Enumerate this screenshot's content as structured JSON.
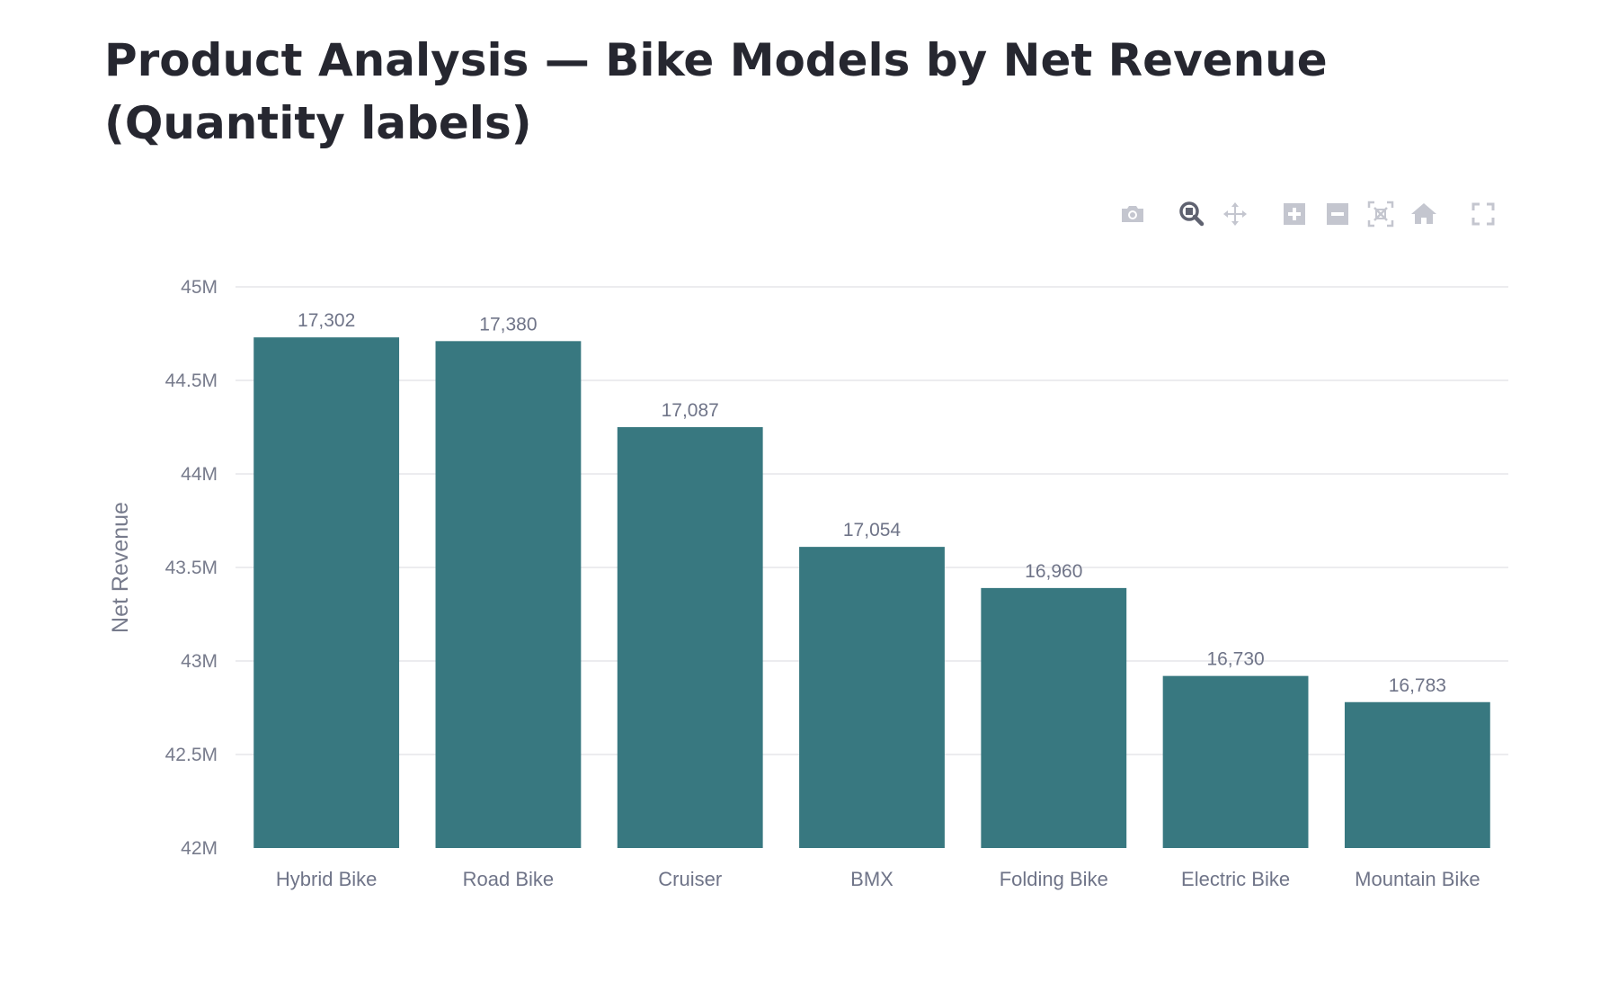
{
  "page": {
    "title": "Product Analysis — Bike Models by Net Revenue (Quantity labels)"
  },
  "toolbar": {
    "buttons": [
      {
        "name": "camera-icon",
        "label": "Download plot as a png"
      },
      {
        "name": "zoom-icon",
        "label": "Zoom"
      },
      {
        "name": "pan-icon",
        "label": "Pan"
      },
      {
        "name": "zoom-in-icon",
        "label": "Zoom in"
      },
      {
        "name": "zoom-out-icon",
        "label": "Zoom out"
      },
      {
        "name": "autoscale-icon",
        "label": "Autoscale"
      },
      {
        "name": "home-icon",
        "label": "Reset axes"
      },
      {
        "name": "fullscreen-icon",
        "label": "Fullscreen"
      }
    ]
  },
  "colors": {
    "bar": "#387880",
    "grid": "#e6e6ea",
    "tick": "#777b8c",
    "label": "#6f7488"
  },
  "chart_data": {
    "type": "bar",
    "title": "Product Analysis — Bike Models by Net Revenue (Quantity labels)",
    "xlabel": "",
    "ylabel": "Net Revenue",
    "categories": [
      "Hybrid Bike",
      "Road Bike",
      "Cruiser",
      "BMX",
      "Folding Bike",
      "Electric Bike",
      "Mountain Bike"
    ],
    "values": [
      44730000,
      44710000,
      44250000,
      43610000,
      43390000,
      42920000,
      42780000
    ],
    "bar_labels": [
      "17,302",
      "17,380",
      "17,087",
      "17,054",
      "16,960",
      "16,730",
      "16,783"
    ],
    "ylim": [
      42000000,
      45000000
    ],
    "yticks": [
      42000000,
      42500000,
      43000000,
      43500000,
      44000000,
      44500000,
      45000000
    ],
    "ytick_labels": [
      "42M",
      "42.5M",
      "43M",
      "43.5M",
      "44M",
      "44.5M",
      "45M"
    ],
    "grid": true,
    "legend": "none"
  }
}
